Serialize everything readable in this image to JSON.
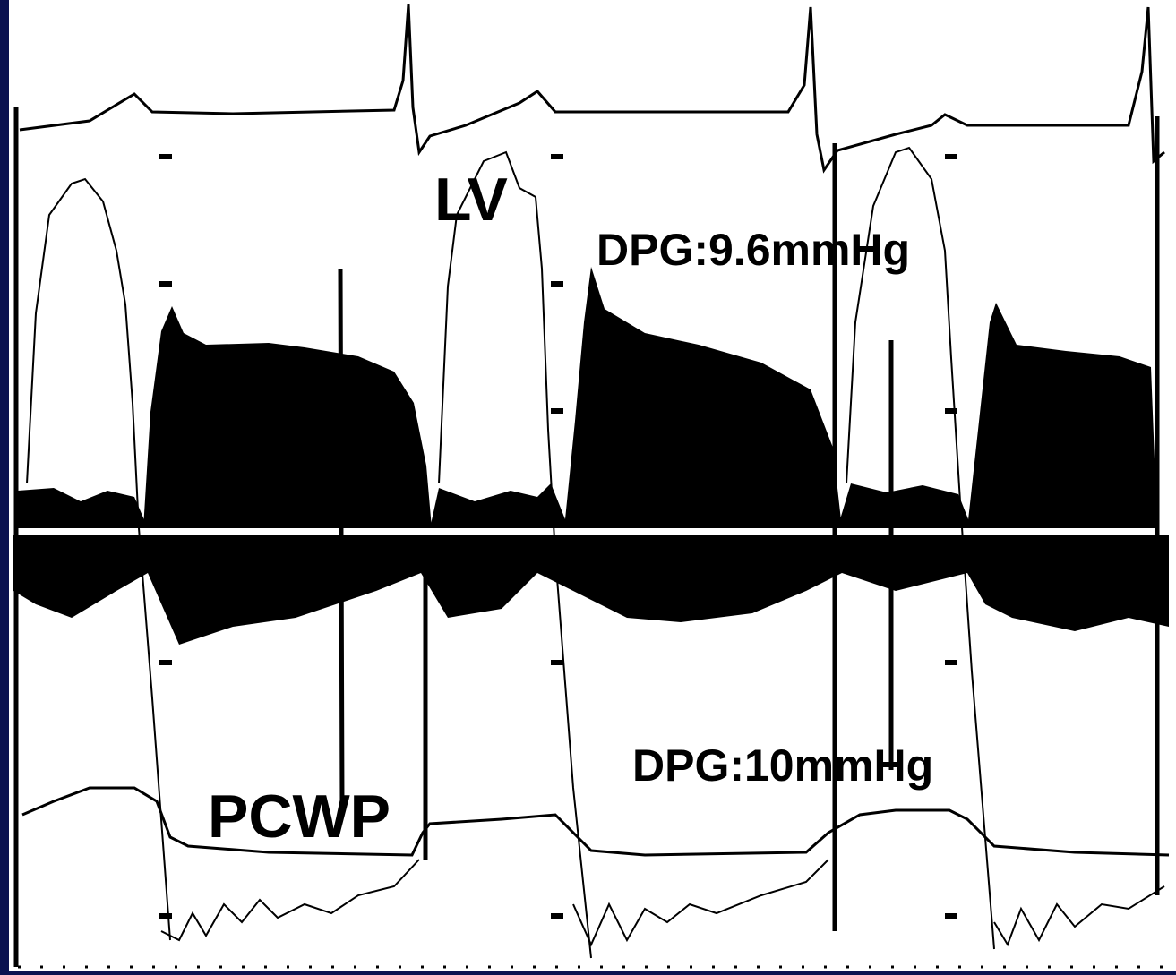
{
  "labels": {
    "lv": "LV",
    "dpg_top": "DPG:9.6mmHg",
    "dpg_bottom": "DPG:10mmHg",
    "pcwp": "PCWP"
  }
}
